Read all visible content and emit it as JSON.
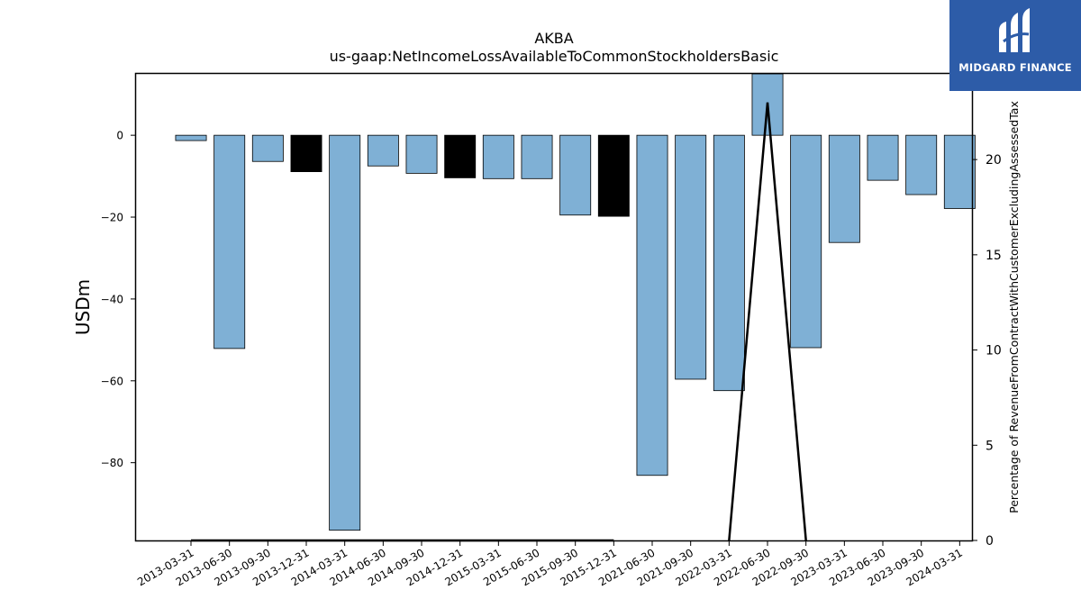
{
  "chart_data": {
    "type": "bar",
    "title": "AKBA",
    "subtitle": "us-gaap:NetIncomeLossAvailableToCommonStockholdersBasic",
    "ylabel": "USDm",
    "y2label": "Percentage of RevenueFromContractWithCustomerExcludingAssessedTax",
    "categories": [
      "2013-03-31",
      "2013-06-30",
      "2013-09-30",
      "2013-12-31",
      "2014-03-31",
      "2014-06-30",
      "2014-09-30",
      "2014-12-31",
      "2015-03-31",
      "2015-06-30",
      "2015-09-30",
      "2015-12-31",
      "2021-06-30",
      "2021-09-30",
      "2022-03-31",
      "2022-06-30",
      "2022-09-30",
      "2023-03-31",
      "2023-06-30",
      "2023-09-30",
      "2024-03-31"
    ],
    "values": [
      -1.3,
      -52.1,
      -6.4,
      -8.9,
      -96.5,
      -7.5,
      -9.3,
      -10.4,
      -10.6,
      -10.6,
      -19.5,
      -19.8,
      -83.1,
      -59.6,
      -62.4,
      15.0,
      -51.9,
      -26.2,
      -11.0,
      -14.5,
      -17.9
    ],
    "highlight": [
      false,
      false,
      false,
      true,
      false,
      false,
      false,
      true,
      false,
      false,
      false,
      true,
      false,
      false,
      false,
      false,
      false,
      false,
      false,
      false,
      false
    ],
    "bar_color": "#7fb0d5",
    "highlight_color": "#000000",
    "ylim": [
      -99,
      15
    ],
    "yticks": [
      0,
      -20,
      -40,
      -60,
      -80
    ],
    "y2lim": [
      0,
      24.5
    ],
    "y2ticks": [
      0,
      5,
      10,
      15,
      20
    ],
    "line_series": {
      "values": [
        0,
        0,
        0,
        0,
        0,
        0,
        0,
        0,
        0,
        0,
        0,
        0,
        null,
        null,
        0,
        23,
        0,
        null,
        null,
        null,
        null
      ],
      "color": "#000000"
    }
  },
  "logo": {
    "text": "MIDGARD FINANCE"
  }
}
